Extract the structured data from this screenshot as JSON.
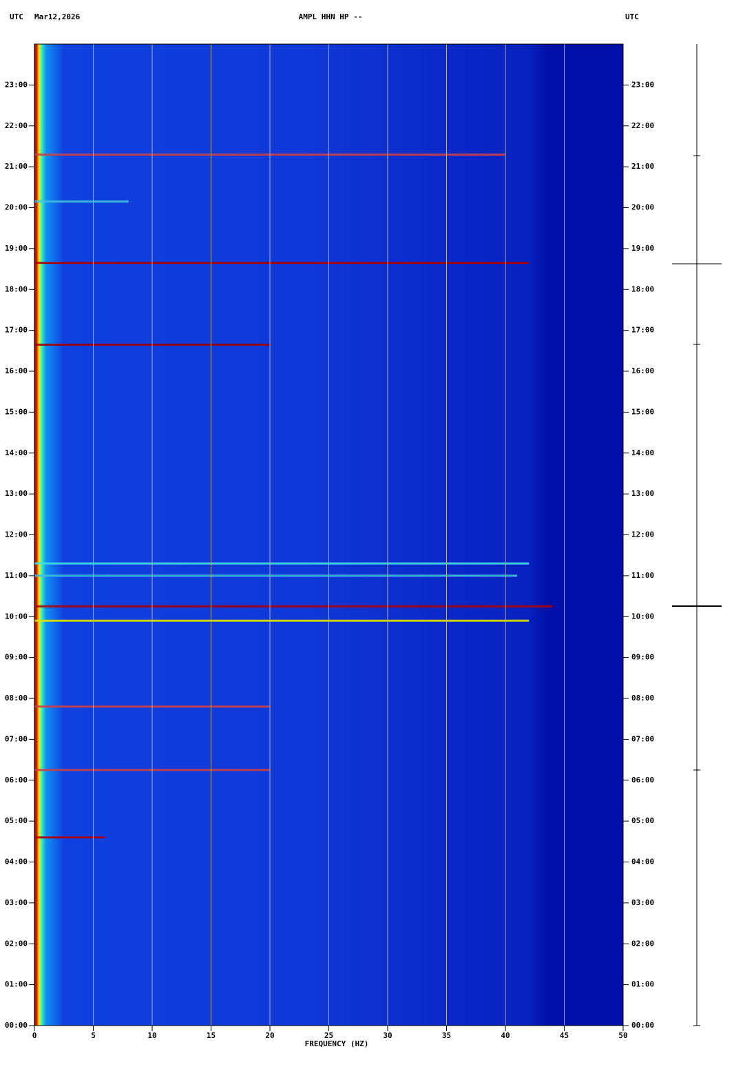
{
  "chart_data": {
    "type": "spectrogram",
    "title_left": "UTC",
    "date": "Mar12,2026",
    "title": "AMPL HHN HP --",
    "title_right": "UTC",
    "xlabel": "FREQUENCY (HZ)",
    "xlim": [
      0,
      50
    ],
    "xticks": [
      0,
      5,
      10,
      15,
      20,
      25,
      30,
      35,
      40,
      45,
      50
    ],
    "grid_x": [
      5,
      10,
      15,
      20,
      25,
      30,
      35,
      40,
      45
    ],
    "ylim": [
      0,
      24
    ],
    "yticks": [
      {
        "value": 0,
        "label": "00:00"
      },
      {
        "value": 1,
        "label": "01:00"
      },
      {
        "value": 2,
        "label": "02:00"
      },
      {
        "value": 3,
        "label": "03:00"
      },
      {
        "value": 4,
        "label": "04:00"
      },
      {
        "value": 5,
        "label": "05:00"
      },
      {
        "value": 6,
        "label": "06:00"
      },
      {
        "value": 7,
        "label": "07:00"
      },
      {
        "value": 8,
        "label": "08:00"
      },
      {
        "value": 9,
        "label": "09:00"
      },
      {
        "value": 10,
        "label": "10:00"
      },
      {
        "value": 11,
        "label": "11:00"
      },
      {
        "value": 12,
        "label": "12:00"
      },
      {
        "value": 13,
        "label": "13:00"
      },
      {
        "value": 14,
        "label": "14:00"
      },
      {
        "value": 15,
        "label": "15:00"
      },
      {
        "value": 16,
        "label": "16:00"
      },
      {
        "value": 17,
        "label": "17:00"
      },
      {
        "value": 18,
        "label": "18:00"
      },
      {
        "value": 19,
        "label": "19:00"
      },
      {
        "value": 20,
        "label": "20:00"
      },
      {
        "value": 21,
        "label": "21:00"
      },
      {
        "value": 22,
        "label": "22:00"
      },
      {
        "value": 23,
        "label": "23:00"
      }
    ],
    "streaks": [
      {
        "time": 10.25,
        "fmax": 44,
        "color": "#b00000"
      },
      {
        "time": 18.65,
        "fmax": 42,
        "color": "#b00000"
      },
      {
        "time": 16.65,
        "fmax": 20,
        "color": "#a00000"
      },
      {
        "time": 21.3,
        "fmax": 40,
        "color": "#d04040"
      },
      {
        "time": 9.9,
        "fmax": 42,
        "color": "#e0e000"
      },
      {
        "time": 11.3,
        "fmax": 42,
        "color": "#40e0e0"
      },
      {
        "time": 11.0,
        "fmax": 41,
        "color": "#40c0e0"
      },
      {
        "time": 6.25,
        "fmax": 20,
        "color": "#d04040"
      },
      {
        "time": 7.8,
        "fmax": 20,
        "color": "#d04040"
      },
      {
        "time": 4.6,
        "fmax": 6,
        "color": "#b00000"
      },
      {
        "time": 20.15,
        "fmax": 8,
        "color": "#40c0e0"
      }
    ]
  }
}
